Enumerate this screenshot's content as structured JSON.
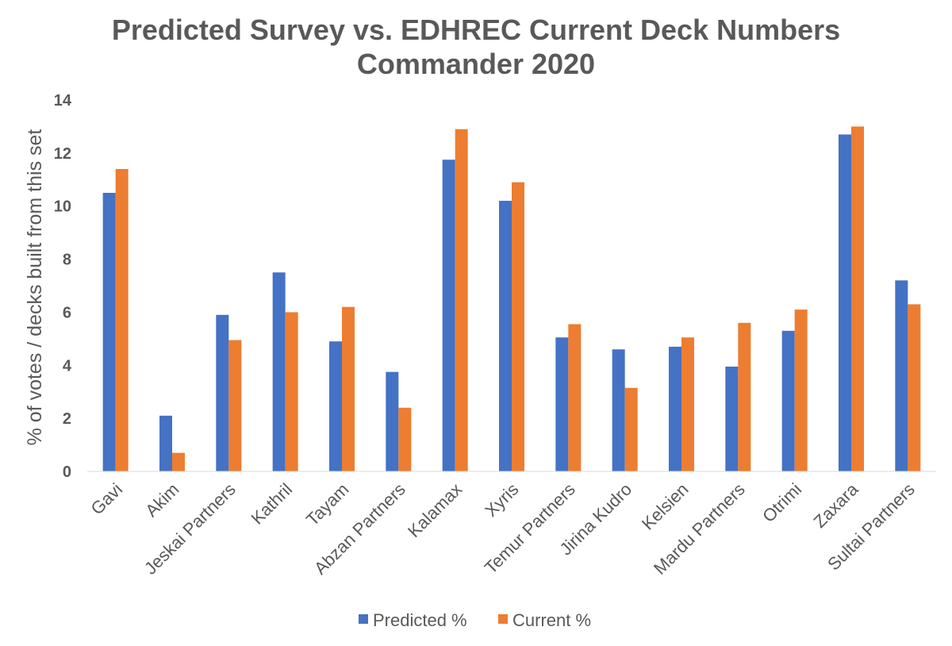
{
  "chart_data": {
    "type": "bar",
    "title": "Predicted Survey vs. EDHREC Current Deck Numbers",
    "subtitle": "Commander 2020",
    "xlabel": "",
    "ylabel": "% of votes / decks built from this set",
    "ylim": [
      0,
      14
    ],
    "yticks": [
      0,
      2,
      4,
      6,
      8,
      10,
      12,
      14
    ],
    "grid": false,
    "legend_position": "bottom",
    "categories": [
      "Gavi",
      "Akim",
      "Jeskai Partners",
      "Kathril",
      "Tayam",
      "Abzan Partners",
      "Kalamax",
      "Xyris",
      "Temur Partners",
      "Jirina Kudro",
      "Kelsien",
      "Mardu Partners",
      "Otrimi",
      "Zaxara",
      "Sultai Partners"
    ],
    "series": [
      {
        "name": "Predicted %",
        "color": "#4472C4",
        "values": [
          10.5,
          2.1,
          5.9,
          7.5,
          4.9,
          3.75,
          11.75,
          10.2,
          5.05,
          4.6,
          4.7,
          3.95,
          5.3,
          12.7,
          7.2
        ]
      },
      {
        "name": "Current %",
        "color": "#ED7D31",
        "values": [
          11.4,
          0.7,
          4.95,
          6.0,
          6.2,
          2.4,
          12.9,
          10.9,
          5.55,
          3.15,
          5.05,
          5.6,
          6.1,
          13.0,
          6.3
        ]
      }
    ]
  }
}
